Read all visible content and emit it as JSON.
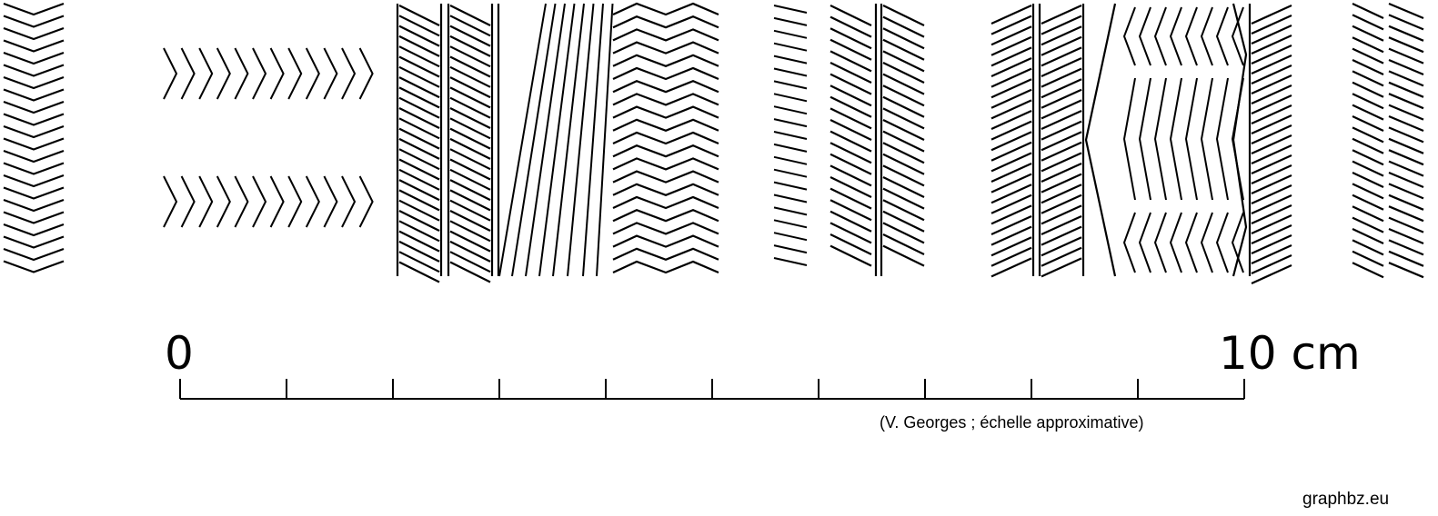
{
  "figure": {
    "ink_color": "#000000",
    "background": "#ffffff",
    "patterns": [
      "chevron-column",
      "chevron-band-upper",
      "chevron-band-lower",
      "hatched-column-pair",
      "oblique-fan-lines",
      "zigzag-column",
      "short-dash-column",
      "hatched-column-pair",
      "hatched-column-pair",
      "chevron-lozenge-block",
      "hatched-column",
      "double-hatched-column"
    ]
  },
  "scale": {
    "start_label": "0",
    "end_label": "10 cm",
    "divisions": 10,
    "credit": "(V. Georges ; échelle approximative)"
  },
  "watermark": "graphbz.eu"
}
